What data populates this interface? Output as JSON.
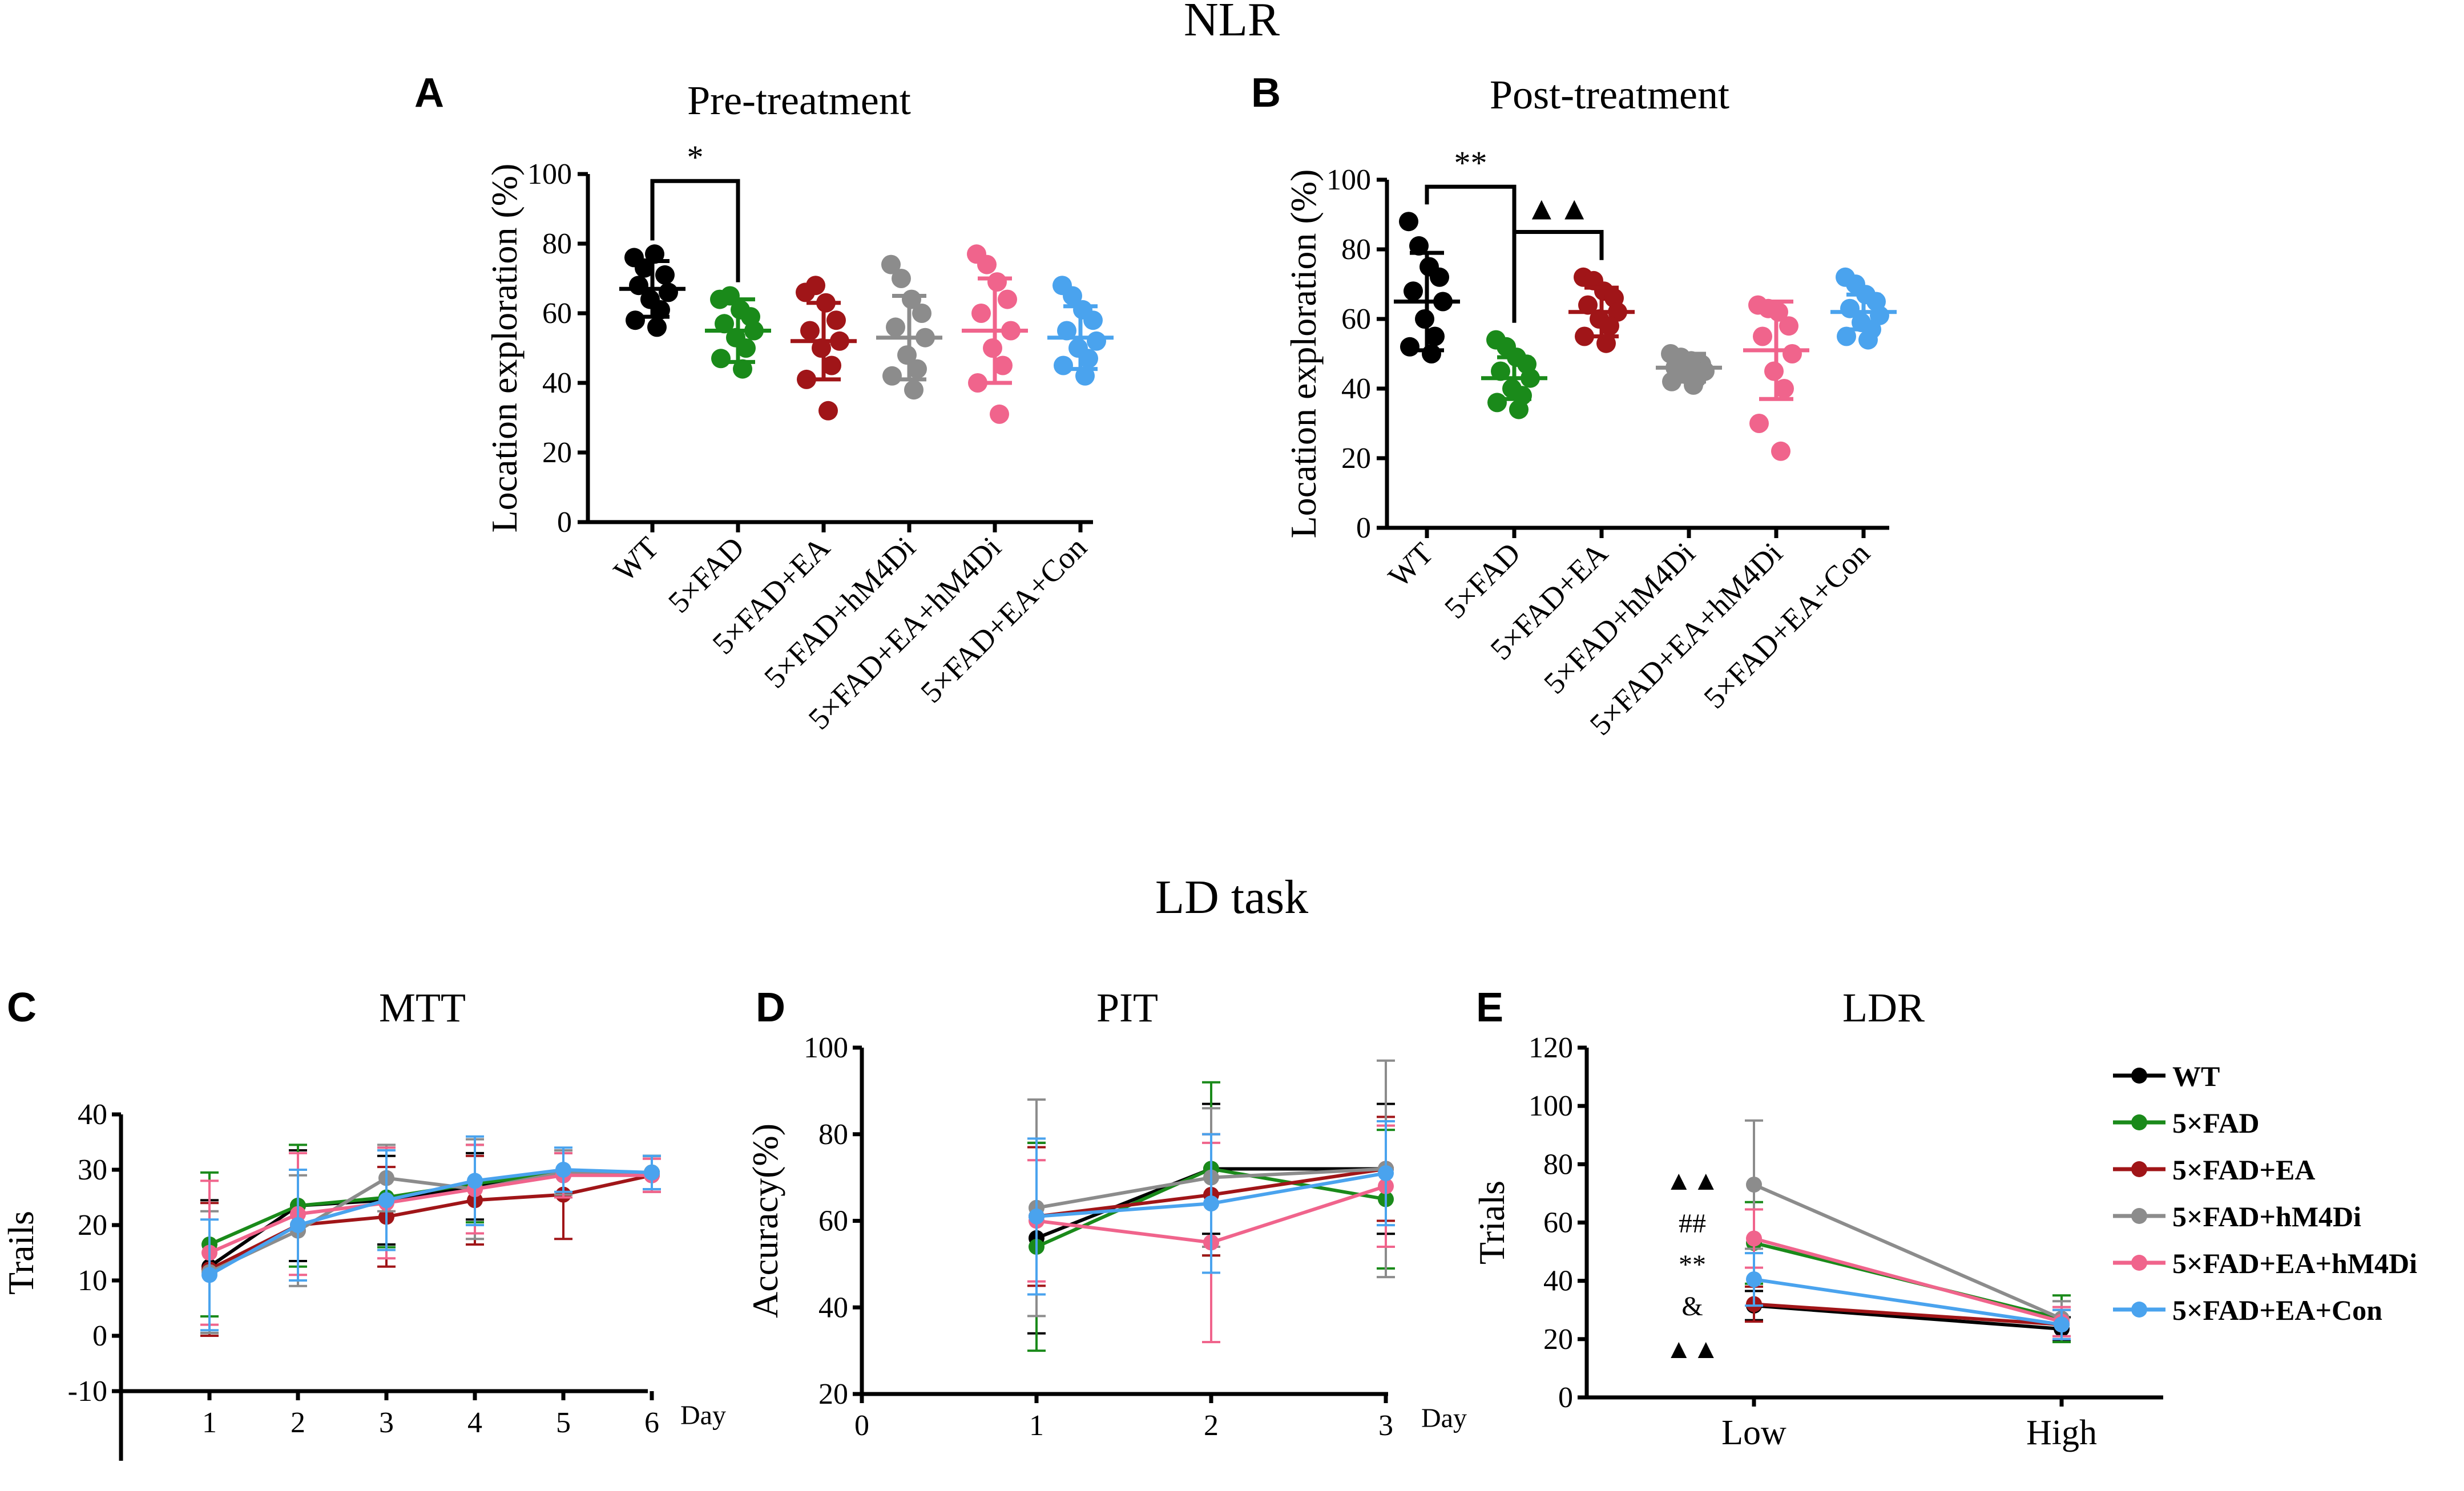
{
  "section_titles": {
    "nlr": "NLR",
    "ld": "LD task"
  },
  "panel_letters": [
    "A",
    "B",
    "C",
    "D",
    "E"
  ],
  "colors": {
    "WT": "#000000",
    "5×FAD": "#1a8a1a",
    "5×FAD+EA": "#a01518",
    "5×FAD+hM4Di": "#8c8c8c",
    "5×FAD+EA+hM4Di": "#f0648c",
    "5×FAD+EA+Con": "#4aa3ee"
  },
  "legend": {
    "items": [
      "WT",
      "5×FAD",
      "5×FAD+EA",
      "5×FAD+hM4Di",
      "5×FAD+EA+hM4Di",
      "5×FAD+EA+Con"
    ]
  },
  "chart_data": [
    {
      "id": "A",
      "type": "scatter",
      "title": "Pre-treatment",
      "ylabel": "Location exploration (%)",
      "ylim": [
        0,
        100
      ],
      "yticks": [
        0,
        20,
        40,
        60,
        80,
        100
      ],
      "categories": [
        "WT",
        "5×FAD",
        "5×FAD+EA",
        "5×FAD+hM4Di",
        "5×FAD+EA+hM4Di",
        "5×FAD+EA+Con"
      ],
      "groups": [
        {
          "name": "WT",
          "mean": 67,
          "sd": 8,
          "points": [
            76,
            73,
            77,
            71,
            68,
            66,
            64,
            61,
            58,
            56
          ]
        },
        {
          "name": "5×FAD",
          "mean": 55,
          "sd": 9,
          "points": [
            64,
            65,
            61,
            59,
            57,
            55,
            53,
            50,
            47,
            44
          ]
        },
        {
          "name": "5×FAD+EA",
          "mean": 52,
          "sd": 11,
          "points": [
            66,
            68,
            63,
            58,
            55,
            52,
            50,
            45,
            41,
            32
          ]
        },
        {
          "name": "5×FAD+hM4Di",
          "mean": 53,
          "sd": 12,
          "points": [
            74,
            70,
            64,
            60,
            56,
            53,
            48,
            44,
            42,
            38
          ]
        },
        {
          "name": "5×FAD+EA+hM4Di",
          "mean": 55,
          "sd": 15,
          "points": [
            77,
            74,
            69,
            64,
            60,
            55,
            50,
            45,
            40,
            31
          ]
        },
        {
          "name": "5×FAD+EA+Con",
          "mean": 53,
          "sd": 9,
          "points": [
            68,
            65,
            61,
            58,
            55,
            52,
            50,
            47,
            45,
            42
          ]
        }
      ],
      "significance": [
        {
          "from": 0,
          "to": 1,
          "label": "*",
          "level": 98
        }
      ]
    },
    {
      "id": "B",
      "type": "scatter",
      "title": "Post-treatment",
      "ylabel": "Location exploration (%)",
      "ylim": [
        0,
        100
      ],
      "yticks": [
        0,
        20,
        40,
        60,
        80,
        100
      ],
      "categories": [
        "WT",
        "5×FAD",
        "5×FAD+EA",
        "5×FAD+hM4Di",
        "5×FAD+EA+hM4Di",
        "5×FAD+EA+Con"
      ],
      "groups": [
        {
          "name": "WT",
          "mean": 65,
          "sd": 14,
          "points": [
            88,
            81,
            75,
            72,
            68,
            65,
            60,
            55,
            52,
            50
          ]
        },
        {
          "name": "5×FAD",
          "mean": 43,
          "sd": 6,
          "points": [
            54,
            52,
            49,
            47,
            45,
            43,
            40,
            38,
            36,
            34
          ]
        },
        {
          "name": "5×FAD+EA",
          "mean": 62,
          "sd": 7,
          "points": [
            72,
            71,
            68,
            66,
            64,
            62,
            60,
            58,
            55,
            53
          ]
        },
        {
          "name": "5×FAD+hM4Di",
          "mean": 46,
          "sd": 4,
          "points": [
            50,
            49,
            48,
            47,
            46,
            45,
            44,
            43,
            42,
            41
          ]
        },
        {
          "name": "5×FAD+EA+hM4Di",
          "mean": 51,
          "sd": 14,
          "points": [
            64,
            63,
            62,
            58,
            55,
            50,
            45,
            40,
            30,
            22
          ]
        },
        {
          "name": "5×FAD+EA+Con",
          "mean": 62,
          "sd": 5,
          "points": [
            72,
            70,
            67,
            65,
            63,
            61,
            59,
            57,
            55,
            54
          ]
        }
      ],
      "significance": [
        {
          "from": 0,
          "to": 1,
          "label": "**",
          "level": 98
        },
        {
          "from": 1,
          "to": 2,
          "label": "▲▲",
          "level": 85
        }
      ]
    },
    {
      "id": "C",
      "type": "line",
      "title": "MTT",
      "ylabel": "Trails",
      "xlabel": "Day",
      "x": [
        1,
        2,
        3,
        4,
        5,
        6
      ],
      "xlim": [
        0,
        6
      ],
      "ylim": [
        -10,
        40
      ],
      "yticks": [
        -10,
        0,
        10,
        20,
        30,
        40
      ],
      "xticks": [
        1,
        2,
        3,
        4,
        5,
        6
      ],
      "series": [
        {
          "name": "WT",
          "values": [
            12.5,
            23.5,
            24.5,
            27,
            29,
            29.5
          ],
          "err": [
            12,
            10,
            8,
            6,
            4,
            3
          ]
        },
        {
          "name": "5×FAD",
          "values": [
            16.5,
            23.5,
            25,
            27.5,
            29.5,
            29.5
          ],
          "err": [
            13,
            11,
            9,
            7,
            4,
            3
          ]
        },
        {
          "name": "5×FAD+EA",
          "values": [
            12,
            20,
            21.5,
            24.5,
            25.5,
            29
          ],
          "err": [
            12,
            10,
            9,
            8,
            8,
            3
          ]
        },
        {
          "name": "5×FAD+hM4Di",
          "values": [
            11.5,
            19,
            28.5,
            26.5,
            29.5,
            29.5
          ],
          "err": [
            11,
            10,
            6,
            9,
            4,
            3
          ]
        },
        {
          "name": "5×FAD+EA+hM4Di",
          "values": [
            15,
            22,
            24,
            26.5,
            29,
            29
          ],
          "err": [
            13,
            11,
            10,
            8,
            4,
            3
          ]
        },
        {
          "name": "5×FAD+EA+Con",
          "values": [
            11,
            20,
            24.5,
            28,
            30,
            29.5
          ],
          "err": [
            10,
            10,
            9,
            8,
            4,
            3
          ]
        }
      ]
    },
    {
      "id": "D",
      "type": "line",
      "title": "PIT",
      "ylabel": "Accuracy(%)",
      "xlabel": "Day",
      "x": [
        1,
        2,
        3
      ],
      "xlim": [
        0,
        3
      ],
      "ylim": [
        20,
        100
      ],
      "yticks": [
        20,
        40,
        60,
        80,
        100
      ],
      "xticks": [
        0,
        1,
        2,
        3
      ],
      "series": [
        {
          "name": "WT",
          "values": [
            56,
            72,
            72
          ],
          "err": [
            22,
            15,
            15
          ]
        },
        {
          "name": "5×FAD",
          "values": [
            54,
            72,
            65
          ],
          "err": [
            24,
            20,
            16
          ]
        },
        {
          "name": "5×FAD+EA",
          "values": [
            61,
            66,
            72
          ],
          "err": [
            16,
            14,
            12
          ]
        },
        {
          "name": "5×FAD+hM4Di",
          "values": [
            63,
            70,
            72
          ],
          "err": [
            25,
            16,
            25
          ]
        },
        {
          "name": "5×FAD+EA+hM4Di",
          "values": [
            60,
            55,
            68
          ],
          "err": [
            14,
            23,
            14
          ]
        },
        {
          "name": "5×FAD+EA+Con",
          "values": [
            61,
            64,
            71
          ],
          "err": [
            18,
            16,
            12
          ]
        }
      ]
    },
    {
      "id": "E",
      "type": "line",
      "title": "LDR",
      "ylabel": "Trials",
      "xlabel": "",
      "categories": [
        "Low",
        "High"
      ],
      "ylim": [
        0,
        120
      ],
      "yticks": [
        0,
        20,
        40,
        60,
        80,
        100,
        120
      ],
      "series": [
        {
          "name": "WT",
          "values": [
            31.5,
            23.5
          ],
          "err": [
            5,
            4
          ]
        },
        {
          "name": "5×FAD",
          "values": [
            53,
            27
          ],
          "err": [
            14,
            8
          ]
        },
        {
          "name": "5×FAD+EA",
          "values": [
            32,
            25
          ],
          "err": [
            6,
            5
          ]
        },
        {
          "name": "5×FAD+hM4Di",
          "values": [
            73,
            27
          ],
          "err": [
            22,
            6
          ]
        },
        {
          "name": "5×FAD+EA+hM4Di",
          "values": [
            54.5,
            26
          ],
          "err": [
            10,
            5
          ]
        },
        {
          "name": "5×FAD+EA+Con",
          "values": [
            40.5,
            25
          ],
          "err": [
            9,
            5
          ]
        }
      ],
      "annotations": [
        "▲▲",
        "##",
        "**",
        "&",
        "▲▲"
      ]
    }
  ]
}
